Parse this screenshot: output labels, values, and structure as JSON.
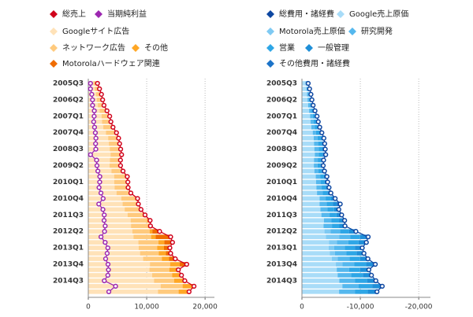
{
  "chart_data": [
    {
      "type": "bar",
      "stacked": true,
      "orientation": "horizontal",
      "categories": [
        "2005Q3",
        null,
        null,
        "2006Q2",
        null,
        null,
        "2007Q1",
        null,
        null,
        "2007Q4",
        null,
        null,
        "2008Q3",
        null,
        null,
        "2009Q2",
        null,
        null,
        "2010Q1",
        null,
        null,
        "2010Q4",
        null,
        null,
        "2011Q3",
        null,
        null,
        "2012Q2",
        null,
        null,
        "2013Q1",
        null,
        null,
        "2013Q4",
        null,
        null,
        "2014Q3",
        null,
        null
      ],
      "xlim": [
        0,
        21600
      ],
      "xticks": [
        0,
        {
          "value": 10000,
          "label": "10,000"
        },
        {
          "value": 20000,
          "label": "20,000"
        }
      ],
      "grid": true,
      "series": [
        {
          "name": "総売上",
          "type": "line",
          "color": "#d0021b",
          "values": [
            1578,
            1919,
            2253,
            2456,
            2690,
            3206,
            3664,
            3872,
            4231,
            4827,
            5186,
            5367,
            5541,
            5701,
            5509,
            5523,
            5945,
            6674,
            6775,
            6820,
            7286,
            8440,
            8575,
            9026,
            9720,
            10584,
            10645,
            12214,
            14101,
            14419,
            13969,
            14105,
            14893,
            16858,
            15420,
            15955,
            16523,
            18103,
            17258
          ]
        },
        {
          "name": "当期純利益",
          "type": "line",
          "color": "#9c27b0",
          "values": [
            381,
            372,
            592,
            721,
            733,
            1031,
            1002,
            925,
            1070,
            1206,
            1307,
            1247,
            1290,
            382,
            1423,
            1485,
            1639,
            1974,
            1955,
            1840,
            2167,
            2543,
            1798,
            2505,
            2729,
            2705,
            2890,
            2785,
            2176,
            2886,
            3346,
            3228,
            2970,
            3376,
            3452,
            3351,
            2739,
            4675,
            3515
          ]
        },
        {
          "name": "Googleサイト広告",
          "type": "bar",
          "color": "#ffe2b8",
          "values": [
            884,
            1105,
            1312,
            1455,
            1630,
            1940,
            2270,
            2360,
            2570,
            3020,
            3400,
            3530,
            3670,
            3810,
            3690,
            3650,
            3960,
            4420,
            4440,
            4500,
            4830,
            5670,
            5880,
            6230,
            6730,
            7250,
            7310,
            7540,
            7730,
            8580,
            8640,
            8860,
            9390,
            10550,
            10470,
            10940,
            11250,
            12390,
            11930
          ]
        },
        {
          "name": "ネットワーク広告",
          "type": "bar",
          "color": "#ffca7d",
          "values": [
            656,
            781,
            910,
            965,
            1010,
            1200,
            1330,
            1450,
            1600,
            1730,
            1690,
            1750,
            1780,
            1700,
            1720,
            1680,
            1840,
            2040,
            2040,
            2060,
            2200,
            2430,
            2430,
            2480,
            2600,
            2820,
            2910,
            2980,
            3020,
            3440,
            3150,
            3200,
            3200,
            3450,
            3400,
            3420,
            3430,
            3760,
            3540
          ]
        },
        {
          "name": "その他",
          "type": "bar",
          "color": "#ffa726",
          "values": [
            38,
            33,
            31,
            36,
            50,
            66,
            64,
            62,
            61,
            77,
            96,
            87,
            91,
            191,
            99,
            193,
            145,
            214,
            295,
            260,
            256,
            340,
            265,
            316,
            390,
            514,
            425,
            444,
            773,
            1014,
            1170,
            1220,
            1230,
            1640,
            1550,
            1600,
            1840,
            1950,
            1790
          ]
        },
        {
          "name": "Motorolaハードウェア関連",
          "type": "bar",
          "color": "#ef6c00",
          "values": [
            null,
            null,
            null,
            null,
            null,
            null,
            null,
            null,
            null,
            null,
            null,
            null,
            null,
            null,
            null,
            null,
            null,
            null,
            null,
            null,
            null,
            null,
            null,
            null,
            null,
            null,
            null,
            1250,
            2578,
            1514,
            1018,
            998,
            1180,
            1243,
            null,
            null,
            null,
            null,
            null
          ]
        }
      ]
    },
    {
      "type": "bar",
      "stacked": true,
      "orientation": "horizontal",
      "categories": [
        "2005Q3",
        null,
        null,
        "2006Q2",
        null,
        null,
        "2007Q1",
        null,
        null,
        "2007Q4",
        null,
        null,
        "2008Q3",
        null,
        null,
        "2009Q2",
        null,
        null,
        "2010Q1",
        null,
        null,
        "2010Q4",
        null,
        null,
        "2011Q3",
        null,
        null,
        "2012Q2",
        null,
        null,
        "2013Q1",
        null,
        null,
        "2013Q4",
        null,
        null,
        "2014Q3",
        null,
        null
      ],
      "xlim": [
        0,
        -22000
      ],
      "xticks": [
        0,
        {
          "value": -10000,
          "label": "-10,000"
        },
        {
          "value": -20000,
          "label": "-20,000"
        }
      ],
      "grid": true,
      "series": [
        {
          "name": "総費用・諸経費",
          "type": "line",
          "color": "#0d47a1",
          "values": [
            -1070,
            -1310,
            -1540,
            -1710,
            -1920,
            -2240,
            -2590,
            -2800,
            -3050,
            -3410,
            -3760,
            -3900,
            -3990,
            -4070,
            -3710,
            -3650,
            -3860,
            -4280,
            -4400,
            -4640,
            -4960,
            -5690,
            -6560,
            -6320,
            -6800,
            -7310,
            -7370,
            -9240,
            -11340,
            -11030,
            -10330,
            -10620,
            -11300,
            -12560,
            -11460,
            -11900,
            -12660,
            -13750,
            -12850
          ]
        },
        {
          "name": "Google売上原価",
          "type": "bar",
          "color": "#a8dcf8",
          "values": [
            -630,
            -770,
            -880,
            -960,
            -1060,
            -1230,
            -1400,
            -1490,
            -1620,
            -1850,
            -2020,
            -2070,
            -2120,
            -2200,
            -2060,
            -2040,
            -2130,
            -2370,
            -2420,
            -2480,
            -2580,
            -3030,
            -3010,
            -3160,
            -3330,
            -3760,
            -3700,
            -3860,
            -4100,
            -4620,
            -4580,
            -4750,
            -5100,
            -5810,
            -5960,
            -6110,
            -6400,
            -6920,
            -6360
          ]
        },
        {
          "name": "Motorola売上原価",
          "type": "bar",
          "color": "#7fcaf3",
          "values": [
            null,
            null,
            null,
            null,
            null,
            null,
            null,
            null,
            null,
            null,
            null,
            null,
            null,
            null,
            null,
            null,
            null,
            null,
            null,
            null,
            null,
            null,
            null,
            null,
            null,
            null,
            null,
            -1030,
            -2270,
            -1350,
            -920,
            -880,
            -1030,
            -1130,
            null,
            null,
            null,
            null,
            null
          ]
        },
        {
          "name": "研究開発",
          "type": "bar",
          "color": "#55b8ee",
          "values": [
            -150,
            -190,
            -230,
            -280,
            -330,
            -400,
            -480,
            -530,
            -560,
            -550,
            -640,
            -710,
            -740,
            -690,
            -650,
            -630,
            -690,
            -750,
            -820,
            -900,
            -990,
            -1030,
            -1230,
            -1230,
            -1400,
            -1300,
            -1440,
            -1640,
            -1880,
            -1950,
            -1840,
            -1950,
            -2020,
            -2030,
            -2130,
            -2300,
            -2660,
            -2750,
            -2750
          ]
        },
        {
          "name": "営業",
          "type": "bar",
          "color": "#2ea6e6",
          "values": [
            -160,
            -200,
            -250,
            -270,
            -300,
            -350,
            -410,
            -450,
            -500,
            -580,
            -640,
            -650,
            -650,
            -650,
            -560,
            -560,
            -590,
            -650,
            -660,
            -720,
            -790,
            -930,
            -1040,
            -1110,
            -1190,
            -1290,
            -1270,
            -1520,
            -1700,
            -1780,
            -1720,
            -1760,
            -1820,
            -2020,
            -1870,
            -2020,
            -2090,
            -2360,
            -2150
          ]
        },
        {
          "name": "一般管理",
          "type": "bar",
          "color": "#1f8fd8",
          "values": [
            -110,
            -130,
            -160,
            -180,
            -200,
            -230,
            -270,
            -300,
            -330,
            -380,
            -420,
            -430,
            -440,
            -430,
            -380,
            -370,
            -390,
            -440,
            -440,
            -480,
            -530,
            -620,
            -700,
            -740,
            -790,
            -860,
            -850,
            -1010,
            -1140,
            -1190,
            -1140,
            -1180,
            -1210,
            -1340,
            -1250,
            -1350,
            -1390,
            -1570,
            -1440
          ]
        },
        {
          "name": "その他費用・諸経費",
          "type": "bar",
          "color": "#1b73c8",
          "values": [
            -20,
            -20,
            -20,
            -20,
            -30,
            -30,
            -30,
            -30,
            -40,
            -50,
            -40,
            -40,
            -40,
            -100,
            -60,
            -50,
            -60,
            -70,
            -60,
            -60,
            -70,
            -80,
            -580,
            -80,
            -90,
            -100,
            -110,
            -180,
            -250,
            -140,
            -130,
            -100,
            -120,
            -230,
            -250,
            -120,
            -120,
            -150,
            -150
          ]
        }
      ]
    }
  ]
}
